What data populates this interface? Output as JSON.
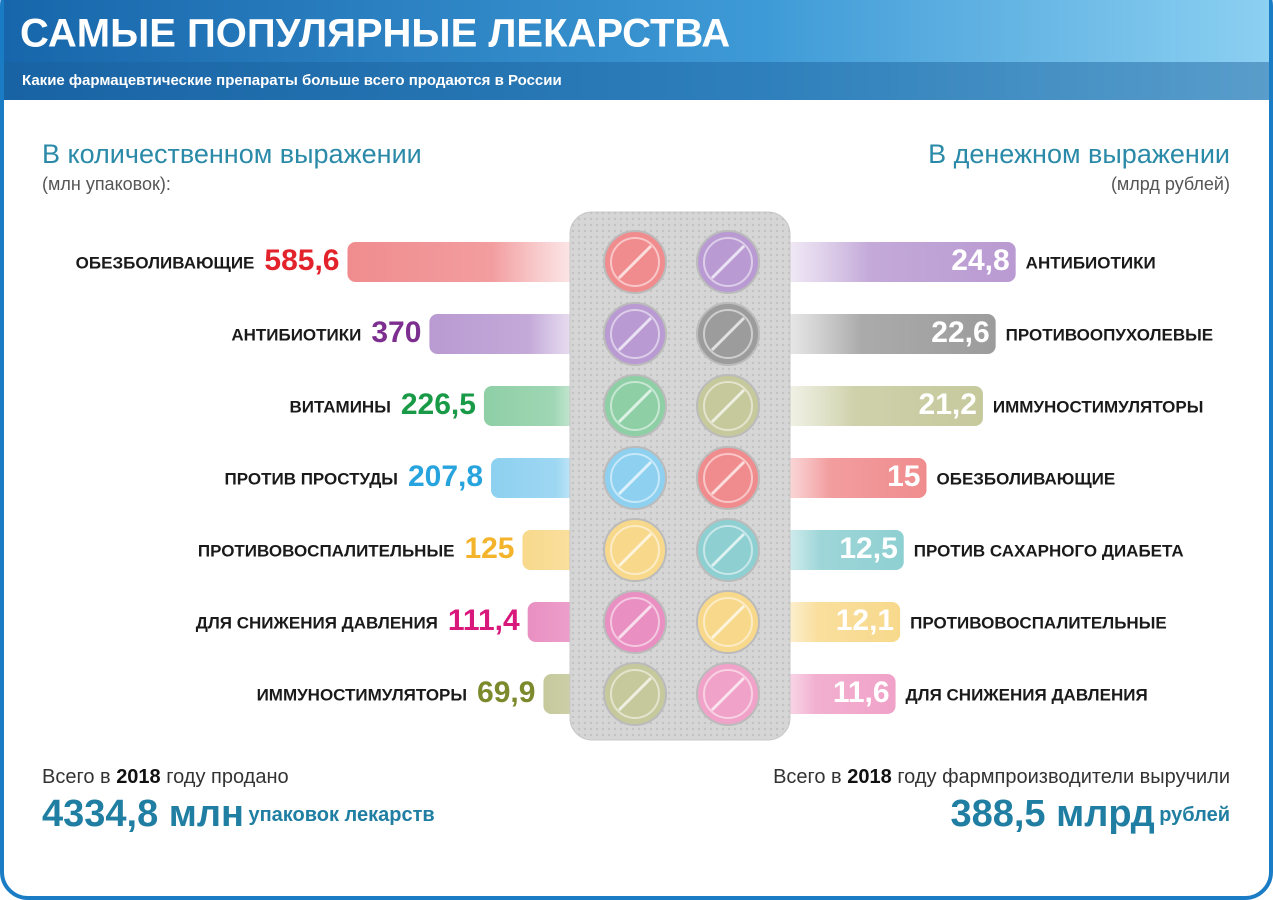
{
  "header": {
    "title": "САМЫЕ ПОПУЛЯРНЫЕ ЛЕКАРСТВА",
    "subtitle": "Какие фармацевтические препараты больше всего продаются в России"
  },
  "chart_data": [
    {
      "type": "bar",
      "orientation": "horizontal",
      "title": "В количественном выражении",
      "subtitle": "(млн упаковок):",
      "categories": [
        "ОБЕЗБОЛИВАЮЩИЕ",
        "АНТИБИОТИКИ",
        "ВИТАМИНЫ",
        "ПРОТИВ ПРОСТУДЫ",
        "ПРОТИВОВОСПАЛИТЕЛЬНЫЕ",
        "ДЛЯ СНИЖЕНИЯ ДАВЛЕНИЯ",
        "ИММУНОСТИМУЛЯТОРЫ"
      ],
      "values": [
        585.6,
        370,
        226.5,
        207.8,
        125,
        111.4,
        69.9
      ],
      "value_labels": [
        "585,6",
        "370",
        "226,5",
        "207,8",
        "125",
        "111,4",
        "69,9"
      ],
      "colors": [
        "#f08c8e",
        "#b99ad2",
        "#8ecfa6",
        "#8dd0f0",
        "#f8d98c",
        "#e98fc2",
        "#c6c99c"
      ],
      "label_colors": [
        "#e3232b",
        "#7d2f90",
        "#199a47",
        "#27a4de",
        "#f3b42c",
        "#d8187b",
        "#7c8a2c"
      ]
    },
    {
      "type": "bar",
      "orientation": "horizontal",
      "title": "В денежном выражении",
      "subtitle": "(млрд рублей)",
      "categories": [
        "АНТИБИОТИКИ",
        "ПРОТИВООПУХОЛЕВЫЕ",
        "ИММУНОСТИМУЛЯТОРЫ",
        "ОБЕЗБОЛИВАЮЩИЕ",
        "ПРОТИВ САХАРНОГО ДИАБЕТА",
        "ПРОТИВОВОСПАЛИТЕЛЬНЫЕ",
        "ДЛЯ СНИЖЕНИЯ ДАВЛЕНИЯ"
      ],
      "values": [
        24.8,
        22.6,
        21.2,
        15,
        12.5,
        12.1,
        11.6
      ],
      "value_labels": [
        "24,8",
        "22,6",
        "21,2",
        "15",
        "12,5",
        "12,1",
        "11,6"
      ],
      "colors": [
        "#b99ad2",
        "#9c9c9c",
        "#c6c99c",
        "#f08c8e",
        "#8ecfd2",
        "#f8d98c",
        "#f0a2c8"
      ]
    }
  ],
  "footer": {
    "left": {
      "prefix": "Всего в",
      "year": "2018",
      "suffix": "году продано",
      "total": "4334,8 млн",
      "unit": "упаковок лекарств"
    },
    "right": {
      "prefix": "Всего в",
      "year": "2018",
      "suffix": "году фармпроизводители выручили",
      "total": "388,5 млрд",
      "unit": "рублей"
    }
  }
}
